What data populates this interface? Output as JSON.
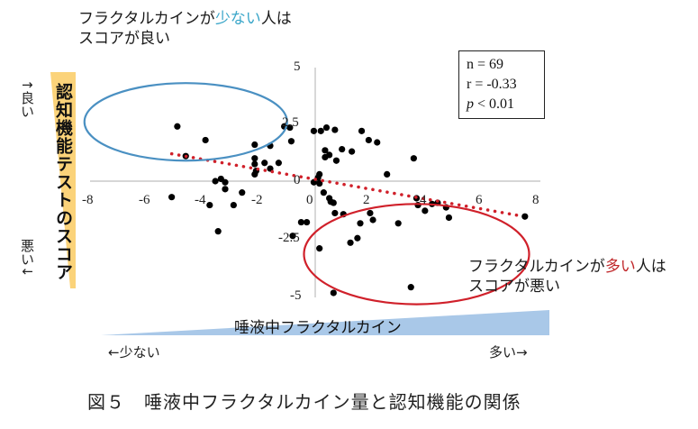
{
  "annotations": {
    "top_left": {
      "line1_pre": "フラクタルカインが",
      "line1_highlight": "少ない",
      "line1_post": "人は",
      "line2": "スコアが良い",
      "highlight_color": "#3aa6c9"
    },
    "bottom_right": {
      "line1_pre": "フラクタルカインが",
      "line1_highlight": "多い",
      "line1_post": "人は",
      "line2": "スコアが悪い",
      "highlight_color": "#c0282b"
    }
  },
  "stats": {
    "n": "n = 69",
    "r": "r = -0.33",
    "p_symbol": "p",
    "p_rest": " < 0.01"
  },
  "y_axis": {
    "label": "認知機能テストのスコア",
    "top_hint": "↑良い",
    "bottom_hint": "悪い↓",
    "bar_color": "#fbd37a"
  },
  "x_axis": {
    "label": "唾液中フラクタルカイン",
    "left_hint": "←少ない",
    "right_hint": "多い→",
    "bar_color": "#a9c8e8"
  },
  "caption": "図５　唾液中フラクタルカイン量と認知機能の関係",
  "chart_data": {
    "type": "scatter",
    "title": "図５ 唾液中フラクタルカイン量と認知機能の関係",
    "xlabel": "唾液中フラクタルカイン",
    "ylabel": "認知機能テストのスコア",
    "xlim": [
      -8,
      8
    ],
    "ylim": [
      -5,
      5
    ],
    "x_ticks": [
      "-8",
      "-6",
      "-4",
      "-2",
      "0",
      "2",
      "4",
      "6",
      "8"
    ],
    "y_ticks": [
      "5",
      "2.5",
      "0",
      "-2.5",
      "-5"
    ],
    "grid": false,
    "legend": null,
    "n": 69,
    "r": -0.33,
    "p": "< 0.01",
    "trendline": {
      "style": "dotted",
      "color": "#d0202a",
      "from": [
        -5.1,
        1.2
      ],
      "to": [
        7.2,
        -1.5
      ]
    },
    "ellipses": [
      {
        "color": "#4a90c2",
        "cx": -4.6,
        "cy": 2.6,
        "rx": 3.6,
        "ry": 1.7,
        "meaning": "少ない人はスコアが良い"
      },
      {
        "color": "#d0202a",
        "cx": 3.6,
        "cy": -3.2,
        "rx": 4.0,
        "ry": 2.2,
        "meaning": "多い人はスコアが悪い"
      }
    ],
    "points": [
      [
        -4.9,
        2.4
      ],
      [
        -3.9,
        1.8
      ],
      [
        -4.6,
        1.1
      ],
      [
        -2.15,
        1.6
      ],
      [
        -1.6,
        1.55
      ],
      [
        -2.15,
        1.0
      ],
      [
        -1.1,
        2.4
      ],
      [
        -0.9,
        2.35
      ],
      [
        -0.85,
        1.75
      ],
      [
        -1.3,
        0.8
      ],
      [
        -1.8,
        0.8
      ],
      [
        -1.6,
        0.55
      ],
      [
        -2.15,
        0.75
      ],
      [
        -2.1,
        0.45
      ],
      [
        -2.15,
        0.3
      ],
      [
        -3.35,
        0.1
      ],
      [
        -3.55,
        0.0
      ],
      [
        -3.2,
        -0.35
      ],
      [
        -3.2,
        -0.05
      ],
      [
        -2.6,
        -0.5
      ],
      [
        -3.75,
        -1.05
      ],
      [
        -2.9,
        -1.05
      ],
      [
        -5.1,
        -0.7
      ],
      [
        -3.45,
        -2.2
      ],
      [
        -0.3,
        -1.8
      ],
      [
        -0.5,
        -1.8
      ],
      [
        -0.8,
        -2.4
      ],
      [
        -0.05,
        -0.05
      ],
      [
        -0.05,
        2.2
      ],
      [
        0.2,
        2.2
      ],
      [
        0.4,
        2.35
      ],
      [
        0.7,
        2.25
      ],
      [
        1.65,
        2.2
      ],
      [
        1.9,
        1.8
      ],
      [
        2.2,
        1.7
      ],
      [
        0.95,
        1.4
      ],
      [
        0.35,
        1.35
      ],
      [
        0.35,
        1.05
      ],
      [
        0.5,
        1.15
      ],
      [
        0.75,
        0.9
      ],
      [
        1.3,
        1.3
      ],
      [
        3.5,
        1.0
      ],
      [
        2.55,
        0.3
      ],
      [
        0.15,
        0.3
      ],
      [
        0.1,
        0.15
      ],
      [
        0.15,
        -0.1
      ],
      [
        0.3,
        -0.5
      ],
      [
        0.5,
        -0.75
      ],
      [
        0.55,
        -0.9
      ],
      [
        0.65,
        -0.95
      ],
      [
        0.7,
        -1.4
      ],
      [
        1.0,
        -1.45
      ],
      [
        1.95,
        -1.4
      ],
      [
        2.05,
        -1.7
      ],
      [
        1.25,
        -2.7
      ],
      [
        1.6,
        -1.85
      ],
      [
        2.95,
        -1.85
      ],
      [
        1.5,
        -2.5
      ],
      [
        0.15,
        -2.95
      ],
      [
        0.65,
        -4.9
      ],
      [
        3.4,
        -4.65
      ],
      [
        4.15,
        -1.0
      ],
      [
        4.35,
        -0.95
      ],
      [
        4.65,
        -1.15
      ],
      [
        3.9,
        -1.3
      ],
      [
        4.75,
        -1.6
      ],
      [
        7.45,
        -1.55
      ],
      [
        3.6,
        -0.75
      ],
      [
        3.65,
        -1.05
      ]
    ]
  }
}
